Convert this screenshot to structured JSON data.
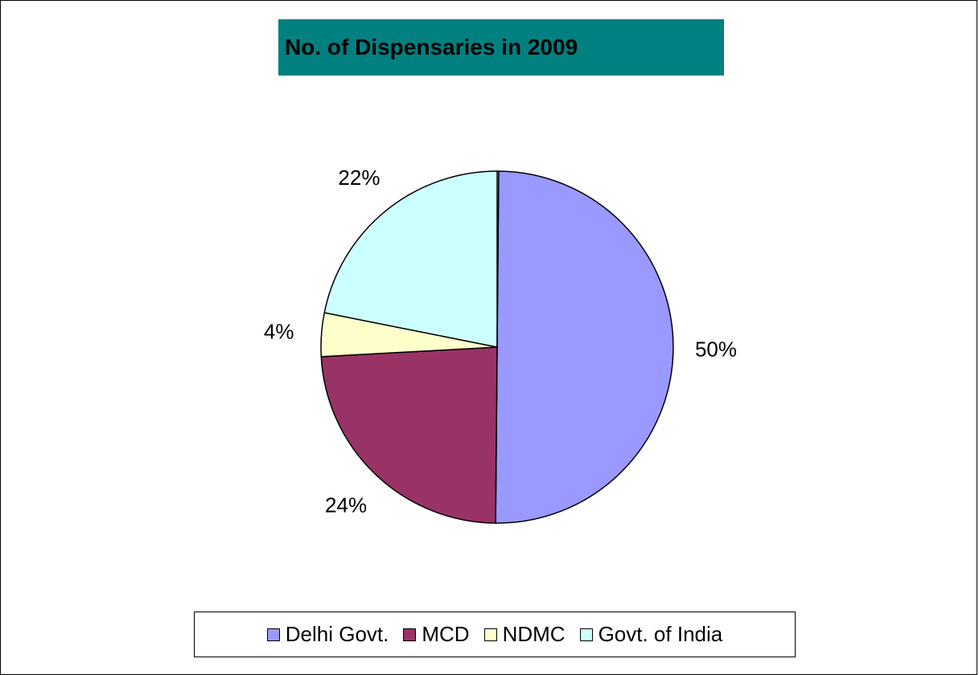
{
  "chart_data": {
    "type": "pie",
    "title": "No. of Dispensaries in 2009",
    "title_background": "#008080",
    "slices": [
      {
        "name": "Delhi Govt.",
        "value": 50,
        "label": "50%",
        "color": "#9999FF"
      },
      {
        "name": "MCD",
        "value": 24,
        "label": "24%",
        "color": "#993366"
      },
      {
        "name": "NDMC",
        "value": 4,
        "label": "4%",
        "color": "#FFFFCC"
      },
      {
        "name": "Govt. of India",
        "value": 22,
        "label": "22%",
        "color": "#CCFFFF"
      }
    ],
    "legend_position": "bottom",
    "start_angle_note": "starts at 12 o'clock, clockwise"
  }
}
